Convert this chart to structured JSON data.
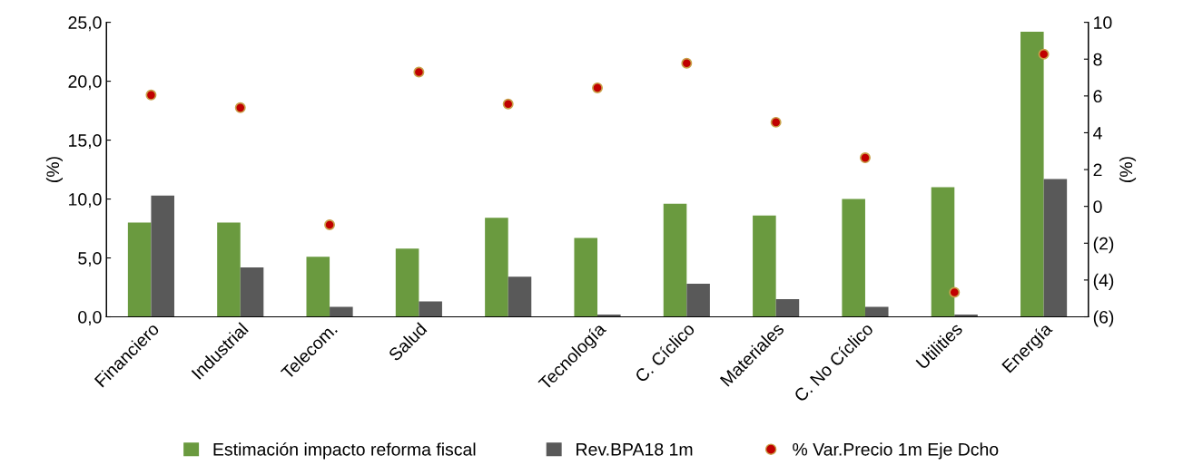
{
  "chart_data": {
    "type": "bar",
    "ylabel": "(%)",
    "y2label": "(%)",
    "categories": [
      "Financiero",
      "Industrial",
      "Telecom.",
      "Salud",
      null,
      "Tecnología",
      "C. Cíclico",
      "Materiales",
      "C. No Cíclico",
      "Utilities",
      "Energía"
    ],
    "series": [
      {
        "name": "Estimación impacto reforma fiscal",
        "color": "#6a9a3f",
        "values": [
          8.0,
          8.0,
          5.1,
          5.8,
          8.4,
          6.7,
          9.6,
          8.6,
          10.0,
          11.0,
          24.2
        ]
      },
      {
        "name": "Rev.BPA18 1m",
        "color": "#595959",
        "values": [
          10.3,
          4.2,
          0.85,
          1.3,
          3.4,
          0.2,
          2.8,
          1.5,
          0.85,
          0.2,
          11.7
        ]
      },
      {
        "name": "% Var.Precio 1m Eje Dcho",
        "type": "scatter",
        "axis": "y2",
        "color": "#c00000",
        "marker": "circle",
        "values": [
          6.05,
          5.36,
          -1.0,
          7.3,
          5.56,
          6.44,
          7.78,
          4.57,
          2.64,
          -4.67,
          8.27
        ]
      }
    ],
    "ylim": [
      0,
      25
    ],
    "yticks": [
      {
        "value": 0,
        "label": "0,0"
      },
      {
        "value": 5,
        "label": "5,0"
      },
      {
        "value": 10,
        "label": "10,0"
      },
      {
        "value": 15,
        "label": "15,0"
      },
      {
        "value": 20,
        "label": "20,0"
      },
      {
        "value": 25,
        "label": "25,0"
      }
    ],
    "y2lim": [
      -6,
      10
    ],
    "y2ticks": [
      {
        "value": -6,
        "label": "(6)"
      },
      {
        "value": -4,
        "label": "(4)"
      },
      {
        "value": -2,
        "label": "(2)"
      },
      0,
      2,
      4,
      6,
      8,
      10
    ],
    "grid": false,
    "legend": "bottom"
  }
}
